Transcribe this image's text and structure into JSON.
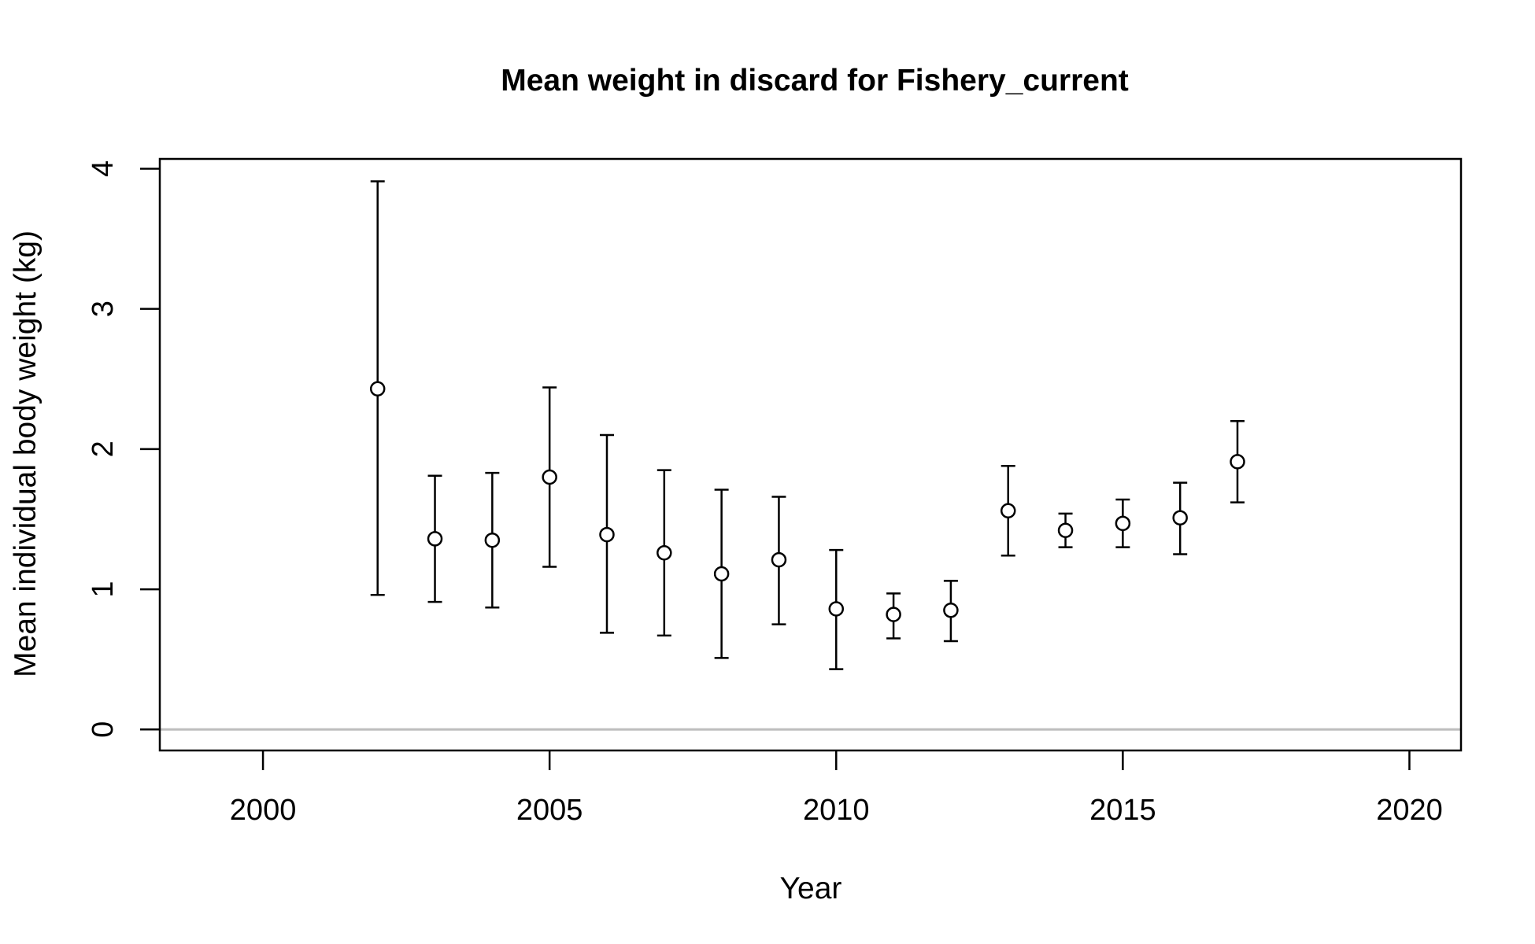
{
  "chart_data": {
    "type": "scatter",
    "title": "Mean weight in discard for Fishery_current",
    "xlabel": "Year",
    "ylabel": "Mean individual body weight (kg)",
    "xlim": [
      1998.2,
      2020.9
    ],
    "ylim": [
      -0.15,
      4.07
    ],
    "xticks": [
      2000,
      2005,
      2010,
      2015,
      2020
    ],
    "yticks": [
      0,
      1,
      2,
      3,
      4
    ],
    "reference_line": {
      "y": 0,
      "color": "#bebebe"
    },
    "grid": false,
    "legend": "none",
    "series": [
      {
        "x": [
          2002,
          2003,
          2004,
          2005,
          2006,
          2007,
          2008,
          2009,
          2010,
          2011,
          2012,
          2013,
          2014,
          2015,
          2016,
          2017
        ],
        "y": [
          2.43,
          1.36,
          1.35,
          1.8,
          1.39,
          1.26,
          1.11,
          1.21,
          0.86,
          0.82,
          0.85,
          1.56,
          1.42,
          1.47,
          1.51,
          1.91
        ],
        "lower": [
          0.96,
          0.91,
          0.87,
          1.16,
          0.69,
          0.67,
          0.51,
          0.75,
          0.43,
          0.65,
          0.63,
          1.24,
          1.3,
          1.3,
          1.25,
          1.62
        ],
        "upper": [
          3.91,
          1.81,
          1.83,
          2.44,
          2.1,
          1.85,
          1.71,
          1.66,
          1.28,
          0.97,
          1.06,
          1.88,
          1.54,
          1.64,
          1.76,
          2.2
        ]
      }
    ]
  }
}
